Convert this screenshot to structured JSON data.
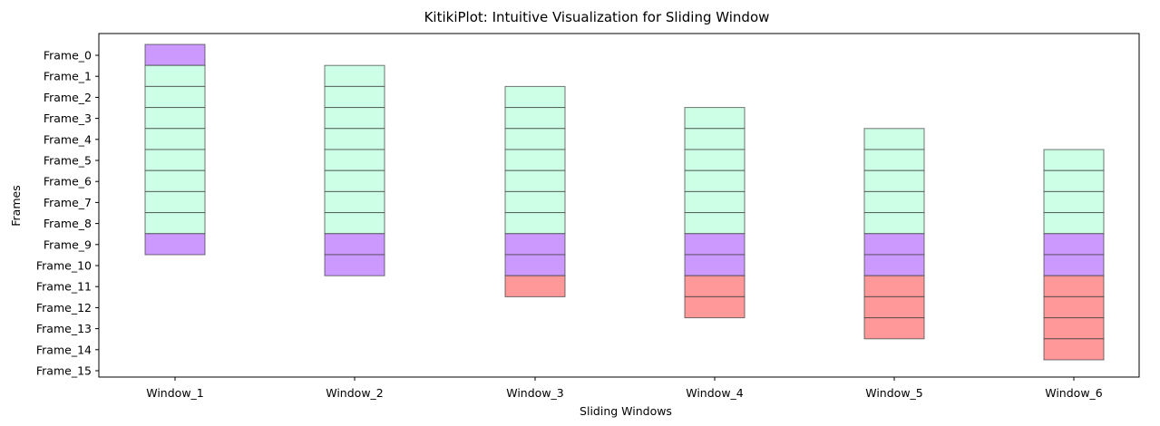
{
  "chart_data": {
    "type": "bar",
    "title": "KitikiPlot: Intuitive Visualization for Sliding Window",
    "xlabel": "Sliding Windows",
    "ylabel": "Frames",
    "categories": [
      "Window_1",
      "Window_2",
      "Window_3",
      "Window_4",
      "Window_5",
      "Window_6"
    ],
    "y_categories": [
      "Frame_0",
      "Frame_1",
      "Frame_2",
      "Frame_3",
      "Frame_4",
      "Frame_5",
      "Frame_6",
      "Frame_7",
      "Frame_8",
      "Frame_9",
      "Frame_10",
      "Frame_11",
      "Frame_12",
      "Frame_13",
      "Frame_14",
      "Frame_15"
    ],
    "y_inverted": true,
    "grid": false,
    "windows": [
      {
        "name": "Window_1",
        "cells": [
          "purple",
          "green",
          "green",
          "green",
          "green",
          "green",
          "green",
          "green",
          "green",
          "purple"
        ]
      },
      {
        "name": "Window_2",
        "cells": [
          "green",
          "green",
          "green",
          "green",
          "green",
          "green",
          "green",
          "green",
          "purple",
          "purple"
        ]
      },
      {
        "name": "Window_3",
        "cells": [
          "green",
          "green",
          "green",
          "green",
          "green",
          "green",
          "green",
          "purple",
          "purple",
          "red"
        ]
      },
      {
        "name": "Window_4",
        "cells": [
          "green",
          "green",
          "green",
          "green",
          "green",
          "green",
          "purple",
          "purple",
          "red",
          "red"
        ]
      },
      {
        "name": "Window_5",
        "cells": [
          "green",
          "green",
          "green",
          "green",
          "green",
          "purple",
          "purple",
          "red",
          "red",
          "red"
        ]
      },
      {
        "name": "Window_6",
        "cells": [
          "green",
          "green",
          "green",
          "green",
          "purple",
          "purple",
          "red",
          "red",
          "red",
          "red"
        ]
      }
    ],
    "colors": {
      "purple": "#CC99FF",
      "green": "#CCFFE5",
      "red": "#FF9999",
      "cell_edge": "#3A3A3A"
    }
  }
}
